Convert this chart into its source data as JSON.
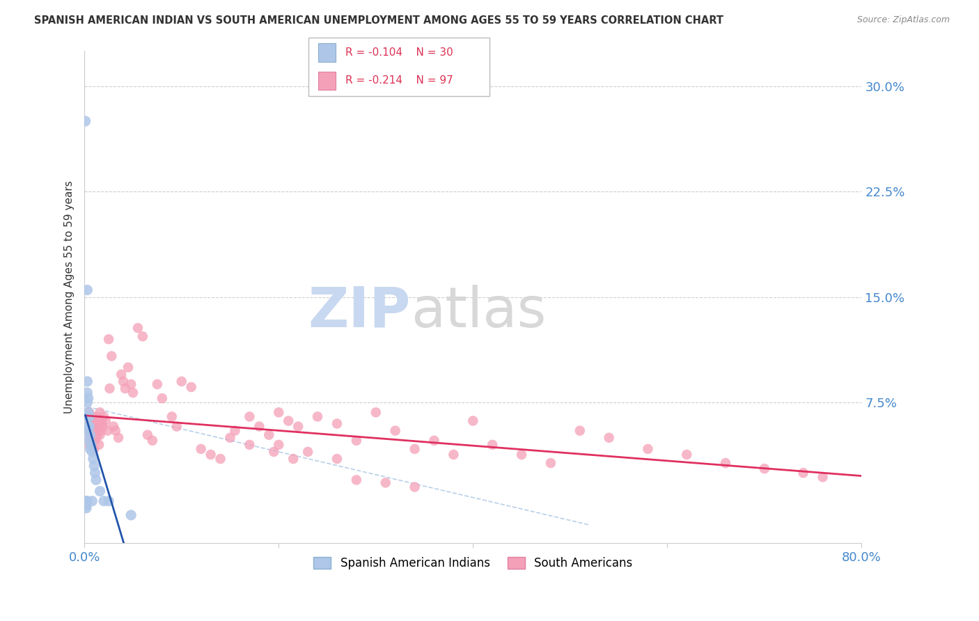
{
  "title": "SPANISH AMERICAN INDIAN VS SOUTH AMERICAN UNEMPLOYMENT AMONG AGES 55 TO 59 YEARS CORRELATION CHART",
  "source": "Source: ZipAtlas.com",
  "ylabel": "Unemployment Among Ages 55 to 59 years",
  "xlim": [
    0.0,
    0.8
  ],
  "ylim": [
    -0.025,
    0.325
  ],
  "legend_r1_val": "-0.104",
  "legend_n1_val": "30",
  "legend_r2_val": "-0.214",
  "legend_n2_val": "97",
  "blue_color": "#aec6e8",
  "pink_color": "#f4a0b8",
  "blue_line_color": "#2255aa",
  "pink_line_color": "#e03060",
  "dashed_line_color": "#b8cfe8",
  "watermark_zip_color": "#c8d8f0",
  "watermark_atlas_color": "#d8d8d8",
  "background_color": "#ffffff",
  "grid_color": "#cccccc",
  "tick_color": "#4488cc",
  "title_color": "#333333",
  "ylabel_color": "#333333",
  "source_color": "#888888",
  "legend_text_color": "#dd3355",
  "legend_border_color": "#bbbbbb",
  "bottom_legend_label1": "Spanish American Indians",
  "bottom_legend_label2": "South Americans",
  "blue_x": [
    0.001,
    0.001,
    0.002,
    0.002,
    0.003,
    0.003,
    0.003,
    0.003,
    0.003,
    0.003,
    0.004,
    0.004,
    0.004,
    0.005,
    0.005,
    0.005,
    0.006,
    0.006,
    0.007,
    0.008,
    0.008,
    0.009,
    0.01,
    0.011,
    0.012,
    0.016,
    0.02,
    0.025,
    0.048,
    0.003
  ],
  "blue_y": [
    0.275,
    0.005,
    0.002,
    0.0,
    0.09,
    0.082,
    0.075,
    0.065,
    0.055,
    0.005,
    0.078,
    0.068,
    0.058,
    0.065,
    0.058,
    0.048,
    0.052,
    0.042,
    0.045,
    0.04,
    0.005,
    0.035,
    0.03,
    0.025,
    0.02,
    0.012,
    0.005,
    0.005,
    -0.005,
    0.155
  ],
  "pink_x": [
    0.003,
    0.003,
    0.004,
    0.004,
    0.005,
    0.005,
    0.005,
    0.006,
    0.006,
    0.007,
    0.007,
    0.008,
    0.008,
    0.009,
    0.009,
    0.01,
    0.01,
    0.01,
    0.011,
    0.011,
    0.012,
    0.012,
    0.013,
    0.013,
    0.014,
    0.015,
    0.015,
    0.016,
    0.016,
    0.017,
    0.018,
    0.019,
    0.02,
    0.022,
    0.024,
    0.025,
    0.026,
    0.028,
    0.03,
    0.032,
    0.035,
    0.038,
    0.04,
    0.042,
    0.045,
    0.048,
    0.05,
    0.055,
    0.06,
    0.065,
    0.07,
    0.075,
    0.08,
    0.09,
    0.095,
    0.1,
    0.11,
    0.12,
    0.13,
    0.14,
    0.155,
    0.17,
    0.18,
    0.19,
    0.2,
    0.21,
    0.22,
    0.24,
    0.26,
    0.28,
    0.3,
    0.32,
    0.34,
    0.36,
    0.38,
    0.4,
    0.42,
    0.45,
    0.48,
    0.51,
    0.54,
    0.58,
    0.62,
    0.66,
    0.7,
    0.74,
    0.76,
    0.28,
    0.31,
    0.34,
    0.2,
    0.23,
    0.26,
    0.15,
    0.17,
    0.195,
    0.215
  ],
  "pink_y": [
    0.06,
    0.055,
    0.062,
    0.058,
    0.068,
    0.055,
    0.045,
    0.06,
    0.05,
    0.065,
    0.052,
    0.058,
    0.048,
    0.06,
    0.05,
    0.062,
    0.055,
    0.042,
    0.058,
    0.048,
    0.06,
    0.05,
    0.065,
    0.052,
    0.058,
    0.062,
    0.045,
    0.068,
    0.052,
    0.055,
    0.06,
    0.058,
    0.065,
    0.062,
    0.055,
    0.12,
    0.085,
    0.108,
    0.058,
    0.055,
    0.05,
    0.095,
    0.09,
    0.085,
    0.1,
    0.088,
    0.082,
    0.128,
    0.122,
    0.052,
    0.048,
    0.088,
    0.078,
    0.065,
    0.058,
    0.09,
    0.086,
    0.042,
    0.038,
    0.035,
    0.055,
    0.065,
    0.058,
    0.052,
    0.068,
    0.062,
    0.058,
    0.065,
    0.06,
    0.048,
    0.068,
    0.055,
    0.042,
    0.048,
    0.038,
    0.062,
    0.045,
    0.038,
    0.032,
    0.055,
    0.05,
    0.042,
    0.038,
    0.032,
    0.028,
    0.025,
    0.022,
    0.02,
    0.018,
    0.015,
    0.045,
    0.04,
    0.035,
    0.05,
    0.045,
    0.04,
    0.035
  ]
}
